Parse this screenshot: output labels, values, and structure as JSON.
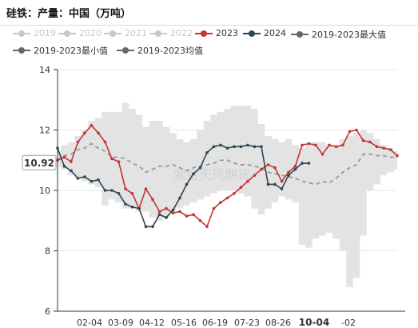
{
  "title": "硅铁：产量：中国（万吨）",
  "watermark": "紫金天风期货",
  "legend": [
    {
      "name": "2019",
      "color": "#c8c8c8",
      "style": "line-dot",
      "active": false
    },
    {
      "name": "2020",
      "color": "#c8c8c8",
      "style": "line-dot",
      "active": false
    },
    {
      "name": "2021",
      "color": "#c8c8c8",
      "style": "line-dot",
      "active": false
    },
    {
      "name": "2022",
      "color": "#c8c8c8",
      "style": "line-dot",
      "active": false
    },
    {
      "name": "2023",
      "color": "#c23531",
      "style": "line-dot",
      "active": true
    },
    {
      "name": "2024",
      "color": "#2f4554",
      "style": "line-dot",
      "active": true
    },
    {
      "name": "2019-2023最大值",
      "color": "#666666",
      "style": "line-dot",
      "active": true
    },
    {
      "name": "2019-2023最小值",
      "color": "#666666",
      "style": "line-dot",
      "active": true
    },
    {
      "name": "2019-2023均值",
      "color": "#666666",
      "style": "line-dot",
      "active": true
    }
  ],
  "chart_data": {
    "type": "line",
    "title": "硅铁：产量：中国（万吨）",
    "xlabel": "",
    "ylabel": "",
    "ylim": [
      6,
      14
    ],
    "yticks": [
      6,
      8,
      10,
      12,
      14
    ],
    "xticks": [
      "02-04",
      "03-09",
      "04-12",
      "05-16",
      "06-19",
      "07-23",
      "08-26",
      "10-04",
      "-02"
    ],
    "highlight_tick": "10-04",
    "grid": true,
    "current_value_label": "10.92",
    "colors": {
      "s2023": "#c23531",
      "s2024": "#2f4554",
      "mean": "#999999",
      "band": "#e3e3e3"
    },
    "band": {
      "name": "2019-2023最大值 / 2019-2023最小值",
      "max": [
        11.3,
        11.5,
        11.6,
        11.8,
        12.0,
        12.3,
        12.4,
        12.6,
        12.6,
        12.6,
        12.9,
        12.7,
        12.5,
        12.1,
        12.3,
        12.3,
        12.1,
        11.9,
        11.7,
        11.6,
        11.7,
        12.0,
        12.3,
        12.5,
        12.6,
        12.7,
        12.8,
        12.8,
        12.8,
        12.7,
        12.2,
        11.8,
        11.7,
        11.6,
        11.7,
        11.5,
        11.4,
        11.5,
        11.6,
        11.6,
        11.5,
        11.5,
        11.7,
        11.8,
        11.9,
        12.0,
        11.9,
        11.7,
        11.5,
        11.4,
        11.3
      ],
      "min": [
        10.8,
        10.7,
        10.5,
        10.4,
        10.3,
        10.2,
        10.1,
        9.5,
        9.7,
        9.6,
        9.4,
        9.4,
        9.3,
        9.3,
        9.1,
        9.0,
        9.1,
        9.3,
        9.4,
        9.5,
        9.6,
        9.7,
        9.8,
        9.9,
        10.0,
        10.0,
        10.0,
        9.9,
        9.8,
        9.4,
        9.2,
        9.4,
        9.6,
        9.8,
        9.7,
        9.6,
        8.2,
        8.1,
        8.4,
        8.5,
        8.6,
        8.4,
        8.0,
        6.8,
        7.1,
        8.5,
        10.0,
        10.2,
        10.5,
        10.6,
        10.7
      ]
    },
    "series": [
      {
        "name": "2023",
        "values": [
          11.0,
          11.1,
          10.95,
          11.6,
          11.9,
          12.15,
          11.9,
          11.6,
          11.05,
          10.95,
          10.05,
          9.9,
          9.4,
          10.05,
          9.7,
          9.3,
          9.4,
          9.25,
          9.3,
          9.15,
          9.2,
          9.0,
          8.8,
          9.4,
          9.6,
          9.75,
          9.9,
          10.1,
          10.3,
          10.5,
          10.7,
          10.85,
          10.75,
          10.3,
          10.6,
          10.8,
          11.5,
          11.55,
          11.5,
          11.2,
          11.5,
          11.45,
          11.5,
          11.95,
          12.0,
          11.65,
          11.6,
          11.45,
          11.4,
          11.35,
          11.15
        ]
      },
      {
        "name": "2024",
        "values": [
          11.4,
          10.8,
          10.65,
          10.4,
          10.45,
          10.3,
          10.35,
          10.0,
          10.0,
          9.9,
          9.55,
          9.45,
          9.4,
          8.8,
          8.8,
          9.2,
          9.1,
          9.35,
          9.75,
          10.2,
          10.55,
          10.75,
          11.25,
          11.45,
          11.5,
          11.4,
          11.45,
          11.45,
          11.5,
          11.45,
          11.45,
          10.2,
          10.2,
          10.05,
          10.5,
          10.7,
          10.9,
          10.9
        ]
      },
      {
        "name": "2019-2023均值",
        "values": [
          11.0,
          11.15,
          11.2,
          11.35,
          11.4,
          11.55,
          11.4,
          11.3,
          11.1,
          11.1,
          11.05,
          10.9,
          10.8,
          10.6,
          10.7,
          10.8,
          10.8,
          10.85,
          10.75,
          10.65,
          10.75,
          10.8,
          10.85,
          10.9,
          11.0,
          11.0,
          10.9,
          10.85,
          10.85,
          10.8,
          10.75,
          10.6,
          10.55,
          10.5,
          10.45,
          10.4,
          10.3,
          10.25,
          10.2,
          10.3,
          10.25,
          10.4,
          10.6,
          10.75,
          10.85,
          11.2,
          11.2,
          11.15,
          11.15,
          11.1,
          11.1
        ]
      }
    ]
  }
}
